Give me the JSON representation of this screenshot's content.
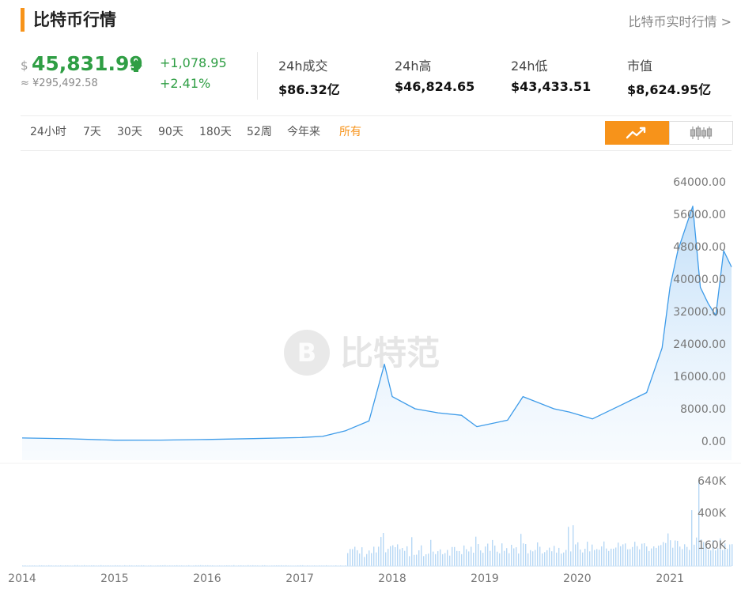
{
  "header": {
    "title": "比特币行情",
    "realtime_link": "比特币实时行情 >"
  },
  "price": {
    "currency_symbol": "$",
    "value": "45,831.99",
    "cny": "≈ ¥295,492.58",
    "change_abs": "+1,078.95",
    "change_pct": "+2.41%",
    "up_color": "#2f9e44"
  },
  "stats": [
    {
      "label": "24h成交",
      "value": "$86.32亿"
    },
    {
      "label": "24h高",
      "value": "$46,824.65"
    },
    {
      "label": "24h低",
      "value": "$43,433.51"
    },
    {
      "label": "市值",
      "value": "$8,624.95亿"
    }
  ],
  "tabs": [
    "24小时",
    "7天",
    "30天",
    "90天",
    "180天",
    "52周",
    "今年来",
    "所有"
  ],
  "active_tab": "所有",
  "chart_toggle": {
    "active": "line-chart-icon",
    "inactive": "candlestick-icon",
    "accent": "#f7931a"
  },
  "watermark": "比特范",
  "chart_data": [
    {
      "type": "area",
      "x": [
        "2014-01",
        "2014-07",
        "2015-01",
        "2015-07",
        "2016-01",
        "2016-07",
        "2017-01",
        "2017-04",
        "2017-07",
        "2017-10",
        "2017-12",
        "2018-01",
        "2018-04",
        "2018-07",
        "2018-10",
        "2018-12",
        "2019-04",
        "2019-06",
        "2019-10",
        "2019-12",
        "2020-03",
        "2020-07",
        "2020-10",
        "2020-12",
        "2021-01",
        "2021-02",
        "2021-04",
        "2021-05",
        "2021-06",
        "2021-07",
        "2021-08",
        "2021-09"
      ],
      "y": [
        800,
        600,
        260,
        280,
        420,
        650,
        900,
        1200,
        2600,
        5000,
        19000,
        11000,
        8000,
        7000,
        6400,
        3600,
        5200,
        11000,
        8000,
        7200,
        5500,
        9200,
        12000,
        23000,
        38000,
        47000,
        58000,
        38000,
        34000,
        31000,
        47000,
        43000
      ],
      "ylim": [
        0,
        64000
      ],
      "yticks": [
        "64000.00",
        "56000.00",
        "48000.00",
        "40000.00",
        "32000.00",
        "24000.00",
        "16000.00",
        "8000.00",
        "0.00"
      ],
      "line_color": "#3d9be9",
      "grid": false
    },
    {
      "type": "bar",
      "ylim": [
        0,
        640000
      ],
      "yticks": [
        "640K",
        "400K",
        "160K"
      ],
      "xticks": [
        "2014",
        "2015",
        "2016",
        "2017",
        "2018",
        "2019",
        "2020",
        "2021"
      ],
      "bar_color": "#b7d8f5"
    }
  ]
}
